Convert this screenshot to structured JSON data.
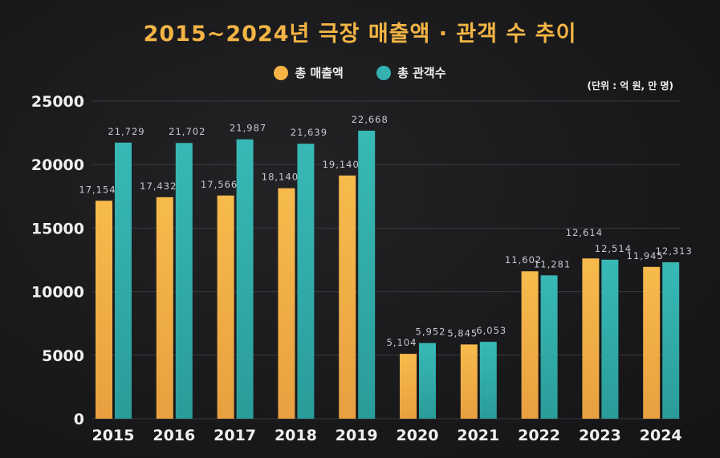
{
  "chart_data": {
    "type": "bar",
    "title": "2015~2024년 극장 매출액 · 관객 수 추이",
    "unit_note": "(단위 : 억 원, 만 명)",
    "categories": [
      "2015",
      "2016",
      "2017",
      "2018",
      "2019",
      "2020",
      "2021",
      "2022",
      "2023",
      "2024"
    ],
    "series": [
      {
        "name": "총 매출액",
        "color": "#f5b445",
        "values": [
          17154,
          17432,
          17566,
          18140,
          19140,
          5104,
          5845,
          11602,
          12614,
          11945
        ],
        "labels": [
          "17,154",
          "17,432",
          "17,566",
          "18,140",
          "19,140",
          "5,104",
          "5,845",
          "11,602",
          "12,614",
          "11,945"
        ]
      },
      {
        "name": "총 관객수",
        "color": "#33b2b0",
        "values": [
          21729,
          21702,
          21987,
          21639,
          22668,
          5952,
          6053,
          11281,
          12514,
          12313
        ],
        "labels": [
          "21,729",
          "21,702",
          "21,987",
          "21,639",
          "22,668",
          "5,952",
          "6,053",
          "11,281",
          "12,514",
          "12,313"
        ]
      }
    ],
    "yticks": [
      "0",
      "5000",
      "10000",
      "15000",
      "20000",
      "25000"
    ],
    "ylim": [
      0,
      25000
    ],
    "grid": true,
    "legend": "top-center"
  }
}
